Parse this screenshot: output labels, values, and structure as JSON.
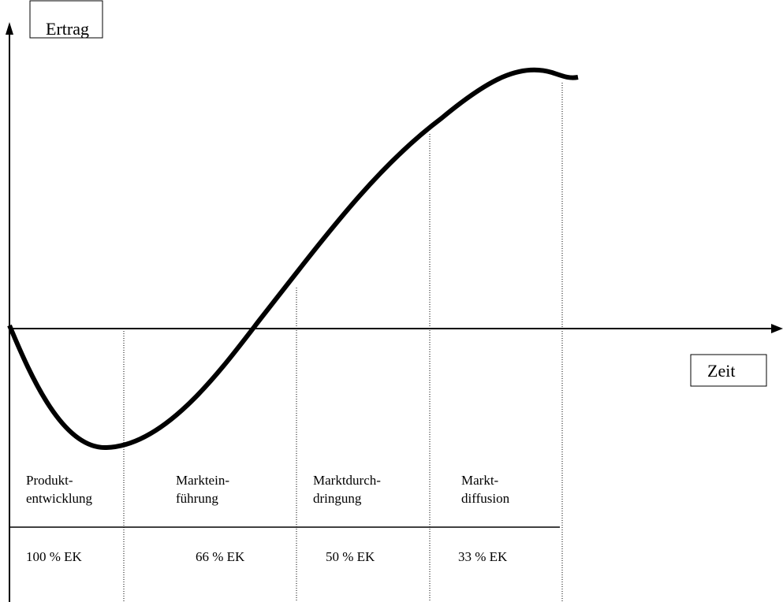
{
  "axes": {
    "y_label": "Ertrag",
    "x_label": "Zeit"
  },
  "phases": [
    {
      "name": [
        "Produkt-",
        "entwicklung"
      ],
      "equity": "100 % EK"
    },
    {
      "name": [
        "Marktein-",
        "führung"
      ],
      "equity": "66 % EK"
    },
    {
      "name": [
        "Marktdurch-",
        "dringung"
      ],
      "equity": "50 % EK"
    },
    {
      "name": [
        "Markt-",
        "diffusion"
      ],
      "equity": "33 % EK"
    }
  ]
}
